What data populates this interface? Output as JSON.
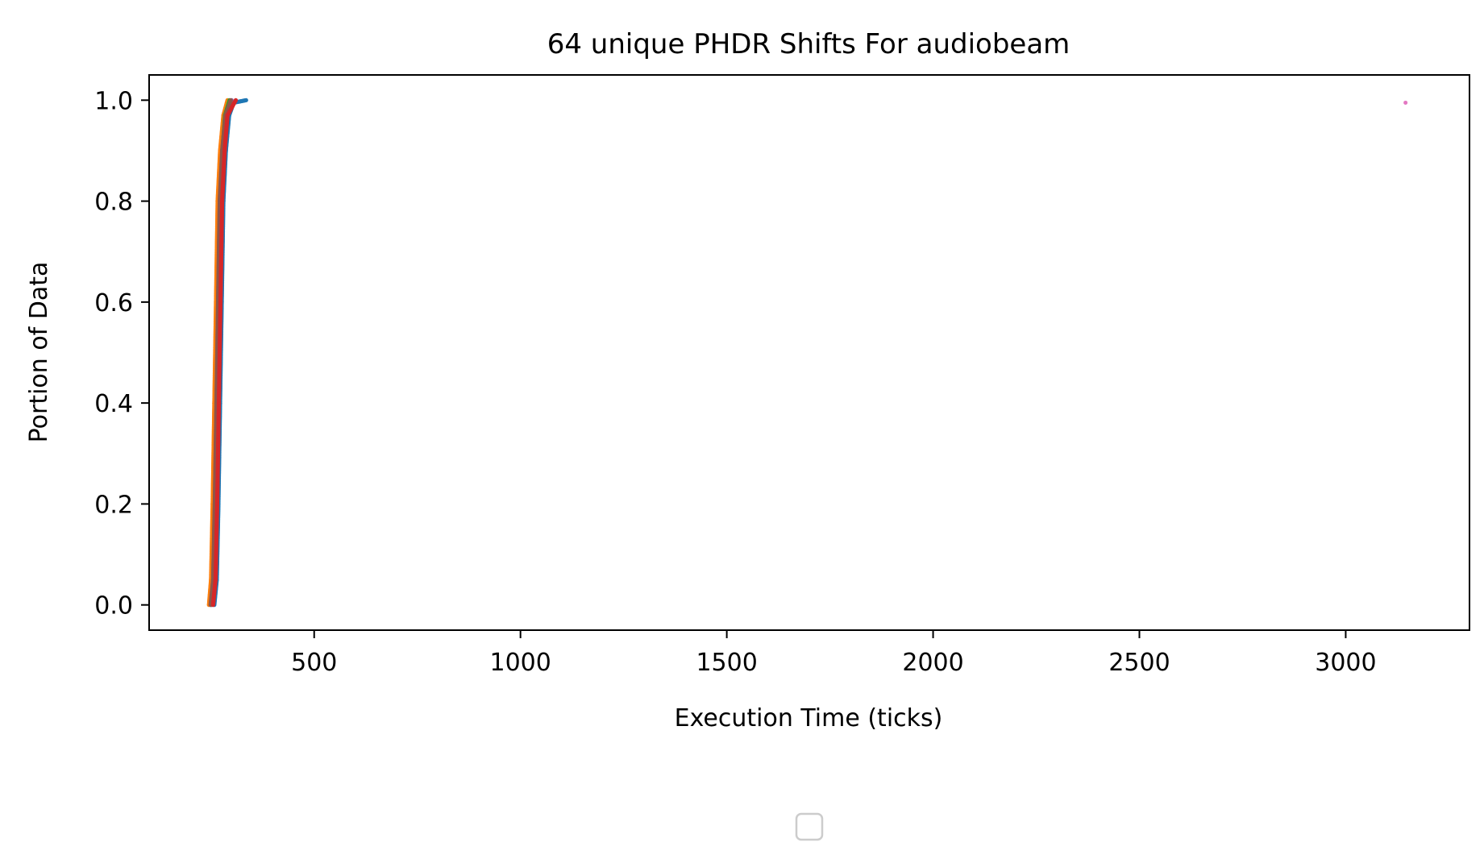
{
  "chart_data": {
    "type": "scatter",
    "title": "64 unique PHDR Shifts For audiobeam",
    "xlabel": "Execution Time (ticks)",
    "ylabel": "Portion of Data",
    "xlim": [
      100,
      3300
    ],
    "ylim": [
      -0.05,
      1.05
    ],
    "xticks": [
      500,
      1000,
      1500,
      2000,
      2500,
      3000
    ],
    "yticks": [
      0.0,
      0.2,
      0.4,
      0.6,
      0.8,
      1.0
    ],
    "xtick_labels": [
      "500",
      "1000",
      "1500",
      "2000",
      "2500",
      "3000"
    ],
    "ytick_labels": [
      "0.0",
      "0.2",
      "0.4",
      "0.6",
      "0.8",
      "1.0"
    ],
    "grid": false,
    "legend": {
      "placement": "bottom-center",
      "entries": []
    },
    "series": [
      {
        "color": "#1f77b4",
        "points": [
          [
            258,
            0.0
          ],
          [
            264,
            0.05
          ],
          [
            268,
            0.2
          ],
          [
            272,
            0.4
          ],
          [
            276,
            0.6
          ],
          [
            280,
            0.8
          ],
          [
            286,
            0.9
          ],
          [
            294,
            0.97
          ],
          [
            305,
            0.995
          ],
          [
            335,
            1.0
          ]
        ]
      },
      {
        "color": "#ff7f0e",
        "points": [
          [
            245,
            0.0
          ],
          [
            250,
            0.05
          ],
          [
            254,
            0.2
          ],
          [
            258,
            0.4
          ],
          [
            262,
            0.6
          ],
          [
            266,
            0.8
          ],
          [
            272,
            0.9
          ],
          [
            280,
            0.97
          ],
          [
            290,
            1.0
          ]
        ]
      },
      {
        "color": "#2ca02c",
        "points": [
          [
            250,
            0.0
          ],
          [
            256,
            0.05
          ],
          [
            260,
            0.2
          ],
          [
            264,
            0.4
          ],
          [
            268,
            0.6
          ],
          [
            272,
            0.8
          ],
          [
            278,
            0.9
          ],
          [
            284,
            0.97
          ],
          [
            295,
            1.0
          ]
        ]
      },
      {
        "color": "#9467bd",
        "points": [
          [
            252,
            0.0
          ],
          [
            258,
            0.05
          ],
          [
            262,
            0.2
          ],
          [
            266,
            0.4
          ],
          [
            270,
            0.6
          ],
          [
            274,
            0.8
          ],
          [
            280,
            0.9
          ],
          [
            288,
            0.97
          ],
          [
            300,
            1.0
          ]
        ]
      },
      {
        "color": "#8c564b",
        "points": [
          [
            249,
            0.0
          ],
          [
            255,
            0.05
          ],
          [
            259,
            0.2
          ],
          [
            263,
            0.4
          ],
          [
            267,
            0.6
          ],
          [
            271,
            0.8
          ],
          [
            277,
            0.9
          ],
          [
            285,
            0.97
          ],
          [
            298,
            1.0
          ]
        ]
      },
      {
        "color": "#d62728",
        "points": [
          [
            255,
            0.0
          ],
          [
            261,
            0.05
          ],
          [
            265,
            0.2
          ],
          [
            269,
            0.4
          ],
          [
            273,
            0.6
          ],
          [
            277,
            0.8
          ],
          [
            283,
            0.9
          ],
          [
            290,
            0.97
          ],
          [
            310,
            1.0
          ]
        ]
      },
      {
        "color": "#e377c2",
        "points": [
          [
            3145,
            0.995
          ]
        ]
      }
    ]
  }
}
